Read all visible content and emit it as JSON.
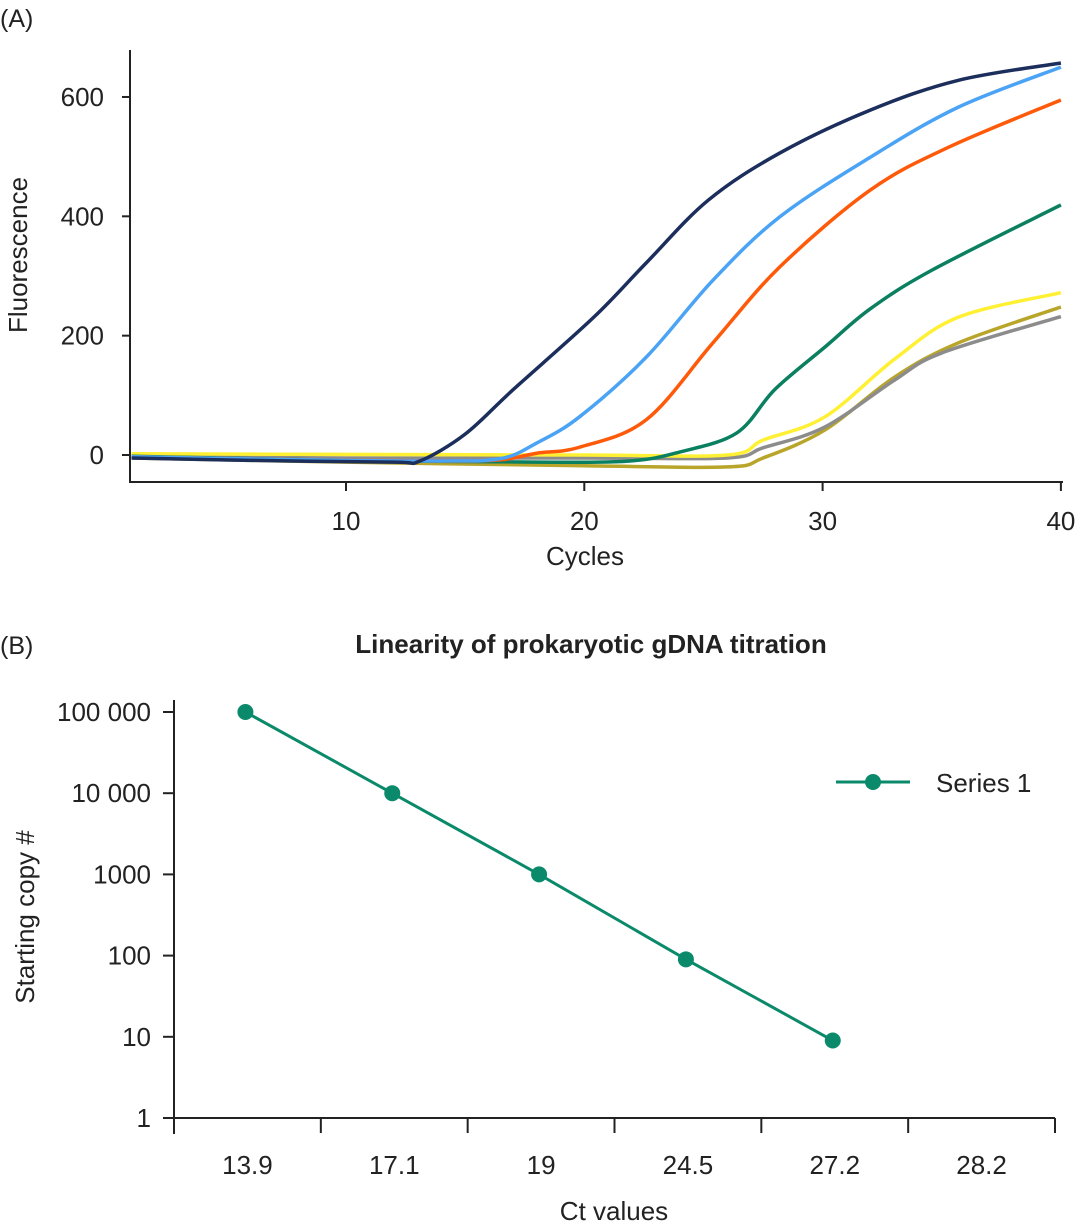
{
  "chart_data": [
    {
      "type": "line",
      "panel_label": "(A)",
      "title": "",
      "xlabel": "Cycles",
      "ylabel": "Fluorescence",
      "xlim": [
        1,
        40
      ],
      "ylim": [
        -45,
        680
      ],
      "xticks": [
        10,
        20,
        30,
        40
      ],
      "yticks": [
        0,
        200,
        400,
        600
      ],
      "grid": false,
      "series": [
        {
          "color": "#1c2e5c",
          "x": [
            1,
            6,
            12,
            13.1,
            15,
            17,
            20.4,
            22.6,
            25.2,
            28.2,
            32,
            35.7,
            40
          ],
          "y": [
            -5,
            -9,
            -12,
            -10,
            35,
            109,
            231,
            322,
            427,
            506,
            578,
            628,
            657
          ]
        },
        {
          "color": "#4aa3f5",
          "x": [
            1,
            8,
            14,
            16.5,
            18,
            19.8,
            22.6,
            25.4,
            28.2,
            32,
            35.7,
            40
          ],
          "y": [
            -3,
            -8,
            -10,
            -6,
            20,
            64,
            164,
            293,
            399,
            499,
            583,
            650
          ]
        },
        {
          "color": "#ff5a0a",
          "x": [
            1,
            8,
            14,
            16.5,
            18,
            19.8,
            22.6,
            25.4,
            28.2,
            32,
            35.3,
            40
          ],
          "y": [
            -3,
            -8,
            -10,
            -8,
            3,
            13,
            59,
            188,
            315,
            444,
            516,
            595
          ]
        },
        {
          "color": "#0a8060",
          "x": [
            1,
            10,
            18,
            21.9,
            24,
            26.4,
            28,
            30.1,
            32,
            34.6,
            40
          ],
          "y": [
            -2,
            -9,
            -12,
            -10,
            5,
            37,
            110,
            181,
            245,
            310,
            419
          ]
        },
        {
          "color": "#fff033",
          "x": [
            1,
            10,
            20,
            26,
            27.5,
            30.1,
            33,
            35.7,
            40
          ],
          "y": [
            2,
            1,
            0,
            0,
            25,
            64,
            160,
            231,
            272
          ]
        },
        {
          "color": "#8c8c8c",
          "x": [
            1,
            10,
            20,
            26,
            27.5,
            30.1,
            33,
            35,
            40
          ],
          "y": [
            -3,
            -5,
            -5,
            -5,
            12,
            47,
            125,
            171,
            232
          ]
        },
        {
          "color": "#b9a52a",
          "x": [
            1,
            10,
            20,
            26,
            27.5,
            30.1,
            33,
            35.7,
            40
          ],
          "y": [
            -5,
            -12,
            -18,
            -20,
            -5,
            42,
            130,
            188,
            248
          ]
        }
      ]
    },
    {
      "type": "line",
      "panel_label": "(B)",
      "title": "Linearity of prokaryotic gDNA titration",
      "xlabel": "Ct values",
      "ylabel": "Starting copy #",
      "categories": [
        "13.9",
        "17.1",
        "19",
        "24.5",
        "27.2",
        "28.2"
      ],
      "y_scale": "log",
      "ylim": [
        1,
        100000
      ],
      "ytick_labels": [
        "100 000",
        "10 000",
        "1000",
        "100",
        "10",
        "1"
      ],
      "yticks": [
        100000,
        10000,
        1000,
        100,
        10,
        1
      ],
      "grid": false,
      "legend_position": "top-right",
      "series": [
        {
          "name": "Series 1",
          "color": "#0a8a6a",
          "values": [
            100000,
            10000,
            1000,
            90,
            9,
            null
          ]
        }
      ]
    }
  ]
}
